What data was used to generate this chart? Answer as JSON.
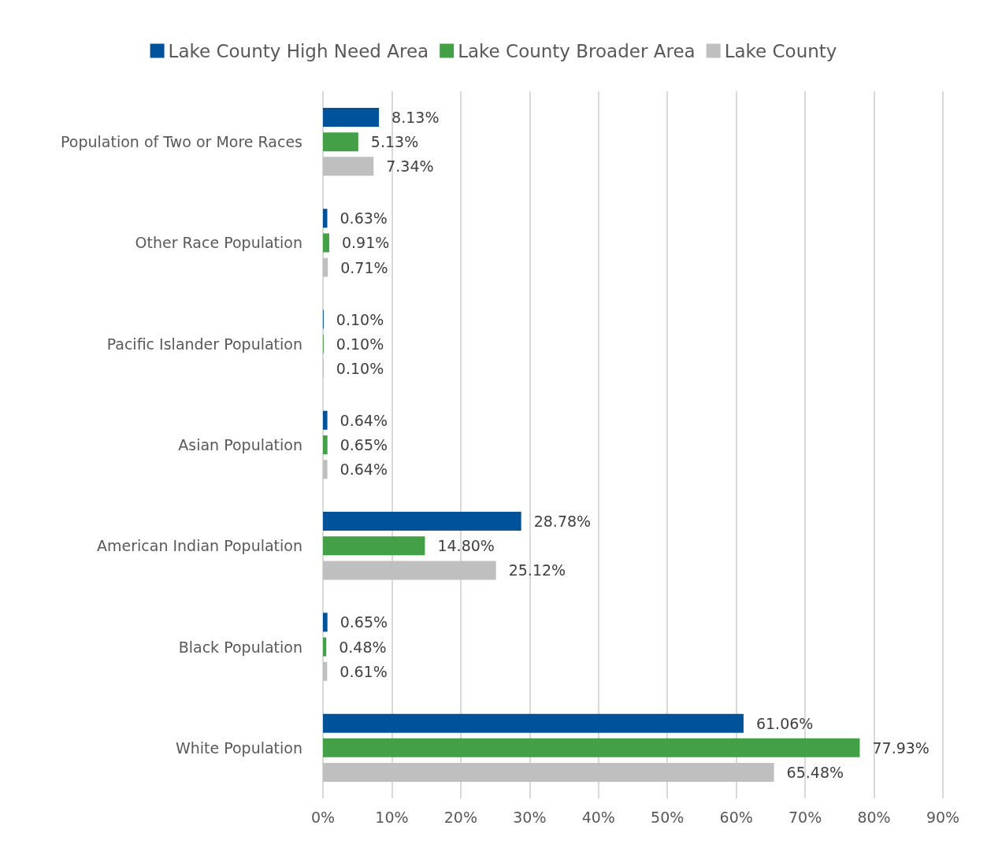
{
  "chart_data": {
    "type": "bar",
    "orientation": "horizontal",
    "categories": [
      "Population of Two or More Races",
      "Other Race Population",
      "Pacific Islander Population",
      "Asian Population",
      "American Indian Population",
      "Black Population",
      "White Population"
    ],
    "series": [
      {
        "name": "Lake County High Need Area",
        "color": "#00539b",
        "values": [
          8.13,
          0.63,
          0.1,
          0.64,
          28.78,
          0.65,
          61.06
        ],
        "value_labels": [
          "8.13%",
          "0.63%",
          "0.10%",
          "0.64%",
          "28.78%",
          "0.65%",
          "61.06%"
        ]
      },
      {
        "name": "Lake County Broader Area",
        "color": "#43a047",
        "values": [
          5.13,
          0.91,
          0.1,
          0.65,
          14.8,
          0.48,
          77.93
        ],
        "value_labels": [
          "5.13%",
          "0.91%",
          "0.10%",
          "0.65%",
          "14.80%",
          "0.48%",
          "77.93%"
        ]
      },
      {
        "name": "Lake County",
        "color": "#bfbfbf",
        "values": [
          7.34,
          0.71,
          0.1,
          0.64,
          25.12,
          0.61,
          65.48
        ],
        "value_labels": [
          "7.34%",
          "0.71%",
          "0.10%",
          "0.64%",
          "25.12%",
          "0.61%",
          "65.48%"
        ]
      }
    ],
    "xlim": [
      0,
      90
    ],
    "xticks": [
      {
        "value": 0,
        "label": "0%"
      },
      {
        "value": 10,
        "label": "10%"
      },
      {
        "value": 20,
        "label": "20%"
      },
      {
        "value": 30,
        "label": "30%"
      },
      {
        "value": 40,
        "label": "40%"
      },
      {
        "value": 50,
        "label": "50%"
      },
      {
        "value": 60,
        "label": "60%"
      },
      {
        "value": 70,
        "label": "70%"
      },
      {
        "value": 80,
        "label": "80%"
      },
      {
        "value": 90,
        "label": "90%"
      }
    ],
    "grid": "x",
    "legend": "top"
  }
}
